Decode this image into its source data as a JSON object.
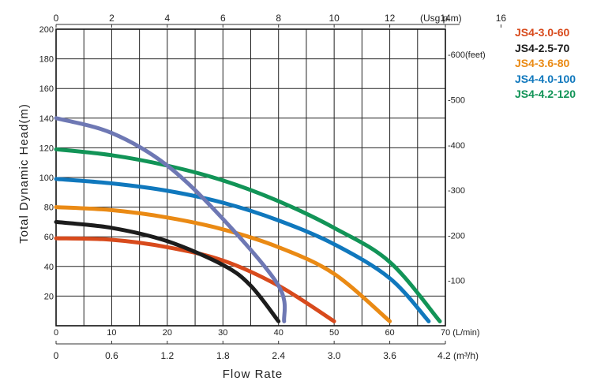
{
  "chart_data": {
    "type": "line",
    "ylabel": "Total Dynamic Head(m)",
    "xlabel": "Flow Rate",
    "y_ticks": [
      20,
      40,
      60,
      80,
      100,
      120,
      140,
      160,
      180,
      200
    ],
    "ylim": [
      0,
      200
    ],
    "feet_ticks": [
      {
        "label": "-100",
        "m": 30.5
      },
      {
        "label": "-200",
        "m": 61
      },
      {
        "label": "-300",
        "m": 91.4
      },
      {
        "label": "-400",
        "m": 121.9
      },
      {
        "label": "-500",
        "m": 152.4
      },
      {
        "label": "-600(feet)",
        "m": 182.9
      }
    ],
    "top_axis": {
      "ticks": [
        "0",
        "2",
        "4",
        "6",
        "8",
        "10",
        "12",
        "14",
        "16"
      ],
      "unit": "(Usg.p.m)"
    },
    "lmin_axis": {
      "ticks": [
        "0",
        "10",
        "20",
        "30",
        "40",
        "50",
        "60"
      ],
      "unit_tick": "70 (L/min)"
    },
    "m3h_axis": {
      "ticks": [
        "0",
        "0.6",
        "1.2",
        "1.8",
        "2.4",
        "3.0",
        "3.6"
      ],
      "unit_tick": "4.2 (m³/h)"
    },
    "xlim": [
      0,
      70
    ],
    "grid": true,
    "series": [
      {
        "name": "JS4-3.0-60",
        "color": "#d84a1c",
        "points": [
          [
            0,
            59
          ],
          [
            10,
            58
          ],
          [
            20,
            53
          ],
          [
            30,
            44
          ],
          [
            40,
            27
          ],
          [
            50,
            3
          ]
        ]
      },
      {
        "name": "JS4-2.5-70",
        "color": "#1c1c1c",
        "points": [
          [
            0,
            70
          ],
          [
            10,
            66
          ],
          [
            20,
            57
          ],
          [
            30,
            41
          ],
          [
            35,
            27
          ],
          [
            40,
            3
          ]
        ]
      },
      {
        "name": "JS4-3.6-80",
        "color": "#ea8a14",
        "points": [
          [
            0,
            80
          ],
          [
            10,
            78
          ],
          [
            20,
            73
          ],
          [
            30,
            65
          ],
          [
            40,
            53
          ],
          [
            50,
            35
          ],
          [
            60,
            3
          ]
        ]
      },
      {
        "name": "JS4-4.0-100",
        "color": "#1078bd",
        "points": [
          [
            0,
            99
          ],
          [
            10,
            96
          ],
          [
            20,
            91
          ],
          [
            30,
            83
          ],
          [
            40,
            71
          ],
          [
            50,
            55
          ],
          [
            60,
            32
          ],
          [
            67,
            3
          ]
        ]
      },
      {
        "name": "JS4-4.2-120",
        "color": "#129457",
        "points": [
          [
            0,
            119
          ],
          [
            10,
            115
          ],
          [
            20,
            108
          ],
          [
            30,
            98
          ],
          [
            40,
            84
          ],
          [
            50,
            66
          ],
          [
            60,
            43
          ],
          [
            69,
            3
          ]
        ]
      },
      {
        "name": "",
        "color": "#6e78b4",
        "points": [
          [
            0,
            140
          ],
          [
            10,
            130
          ],
          [
            20,
            108
          ],
          [
            30,
            72
          ],
          [
            40,
            27
          ],
          [
            41,
            3
          ]
        ]
      }
    ]
  }
}
